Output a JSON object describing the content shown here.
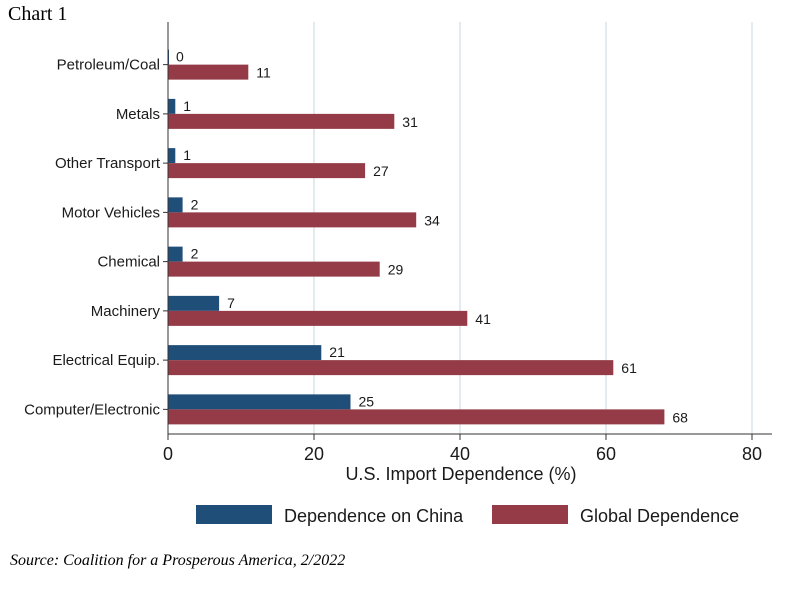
{
  "chart_label": "Chart 1",
  "source": "Source: Coalition for a Prosperous America, 2/2022",
  "colors": {
    "china": "#1f4e79",
    "global": "#943b47",
    "grid": "#d9e6ea",
    "axis": "#333333"
  },
  "chart_data": {
    "type": "bar",
    "orientation": "horizontal",
    "categories": [
      "Petroleum/Coal",
      "Metals",
      "Other Transport",
      "Motor Vehicles",
      "Chemical",
      "Machinery",
      "Electrical Equip.",
      "Computer/Electronic"
    ],
    "series": [
      {
        "name": "Dependence on China",
        "values": [
          0,
          1,
          1,
          2,
          2,
          7,
          21,
          25
        ]
      },
      {
        "name": "Global Dependence",
        "values": [
          11,
          31,
          27,
          34,
          29,
          41,
          61,
          68
        ]
      }
    ],
    "xlabel": "U.S. Import Dependence (%)",
    "xlim": [
      0,
      80
    ],
    "xticks": [
      0,
      20,
      40,
      60,
      80
    ],
    "grid": true,
    "legend_position": "bottom"
  }
}
